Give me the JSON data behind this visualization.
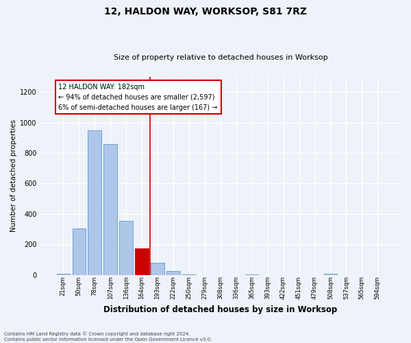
{
  "title": "12, HALDON WAY, WORKSOP, S81 7RZ",
  "subtitle": "Size of property relative to detached houses in Worksop",
  "xlabel": "Distribution of detached houses by size in Worksop",
  "ylabel": "Number of detached properties",
  "categories": [
    "21sqm",
    "50sqm",
    "78sqm",
    "107sqm",
    "136sqm",
    "164sqm",
    "193sqm",
    "222sqm",
    "250sqm",
    "279sqm",
    "308sqm",
    "336sqm",
    "365sqm",
    "393sqm",
    "422sqm",
    "451sqm",
    "479sqm",
    "508sqm",
    "537sqm",
    "565sqm",
    "594sqm"
  ],
  "values": [
    10,
    305,
    950,
    860,
    355,
    175,
    80,
    25,
    5,
    0,
    0,
    0,
    5,
    0,
    0,
    0,
    0,
    10,
    0,
    0,
    0
  ],
  "highlight_index": 5,
  "highlight_color": "#cc0000",
  "bar_color": "#aec6e8",
  "bar_edge_color": "#5b9bd5",
  "ylim": [
    0,
    1300
  ],
  "yticks": [
    0,
    200,
    400,
    600,
    800,
    1000,
    1200
  ],
  "annotation_text": "12 HALDON WAY: 182sqm\n← 94% of detached houses are smaller (2,597)\n6% of semi-detached houses are larger (167) →",
  "annotation_box_color": "#ffffff",
  "annotation_box_edge": "#cc0000",
  "vline_x": 5.5,
  "footer": "Contains HM Land Registry data © Crown copyright and database right 2024.\nContains public sector information licensed under the Open Government Licence v3.0.",
  "background_color": "#eef2f9",
  "grid_color": "#ffffff",
  "title_fontsize": 10,
  "subtitle_fontsize": 8,
  "ylabel_fontsize": 7.5,
  "xlabel_fontsize": 8.5,
  "tick_fontsize": 6,
  "annotation_fontsize": 7,
  "footer_fontsize": 5
}
